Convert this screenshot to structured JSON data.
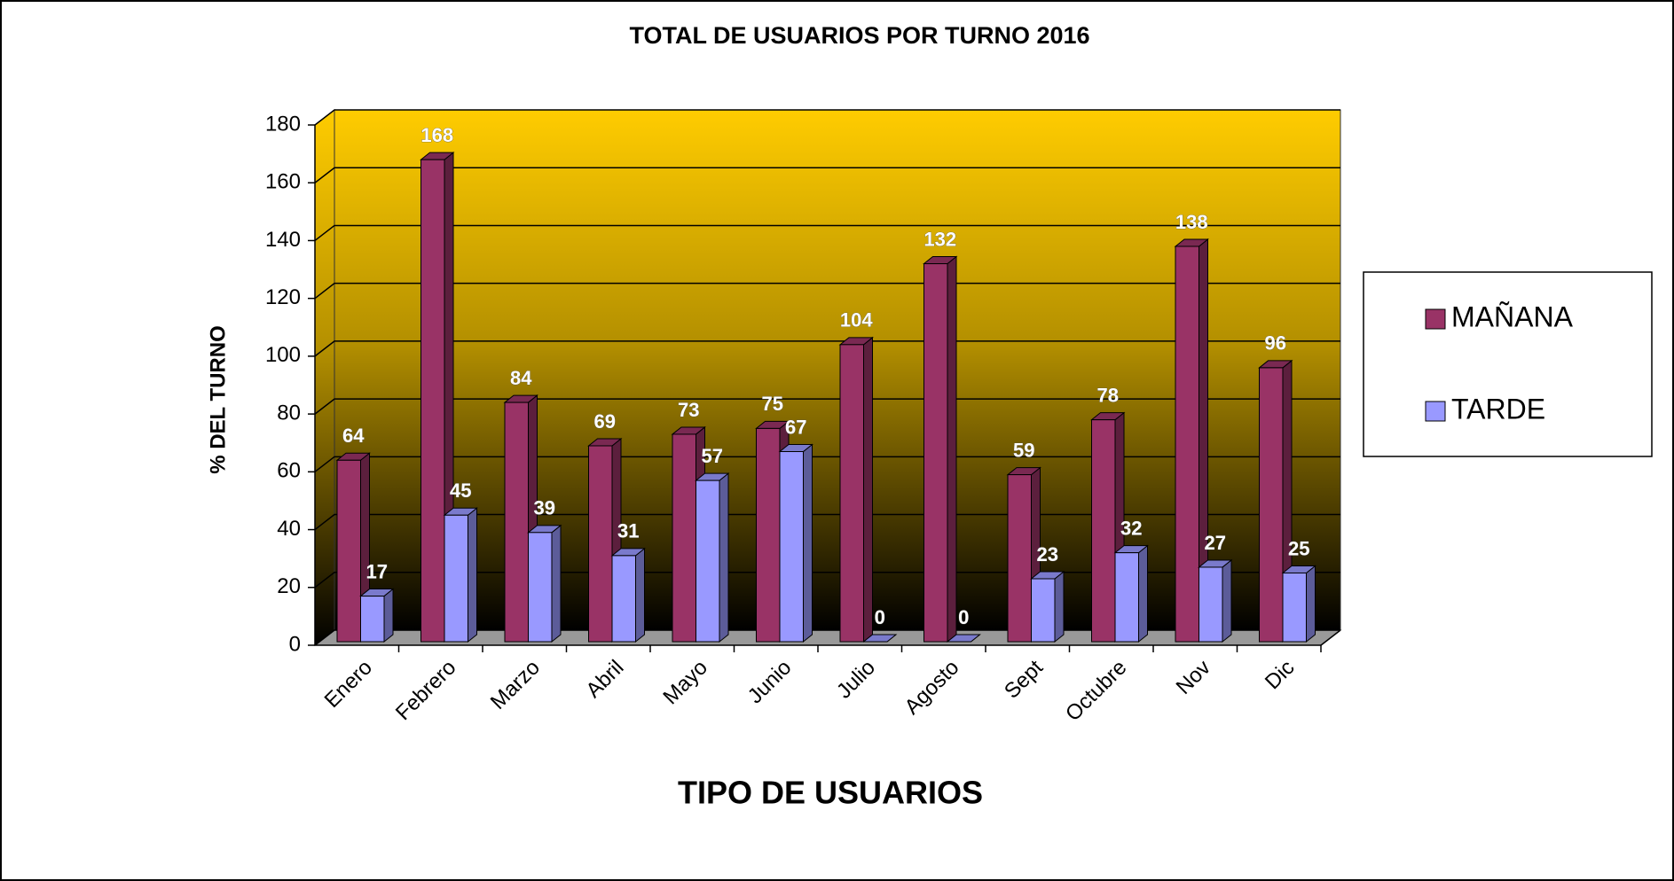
{
  "chart_data": {
    "type": "bar3d",
    "title": "TOTAL DE USUARIOS  POR TURNO 2016",
    "x_label": "TIPO DE USUARIOS",
    "y_label": "% DEL TURNO",
    "categories": [
      "Enero",
      "Febrero",
      "Marzo",
      "Abril",
      "Mayo",
      "Junio",
      "Julio",
      "Agosto",
      "Sept",
      "Octubre",
      "Nov",
      "Dic"
    ],
    "series": [
      {
        "name": "MAÑANA",
        "color": "#993366",
        "values": [
          64,
          168,
          84,
          69,
          73,
          75,
          104,
          132,
          59,
          78,
          138,
          96
        ]
      },
      {
        "name": "TARDE",
        "color": "#9999ff",
        "values": [
          17,
          45,
          39,
          31,
          57,
          67,
          0,
          0,
          23,
          32,
          27,
          25
        ]
      }
    ],
    "ylim": [
      0,
      180
    ],
    "yticks": [
      0,
      20,
      40,
      60,
      80,
      100,
      120,
      140,
      160,
      180
    ],
    "grid": true,
    "legend": "right"
  }
}
